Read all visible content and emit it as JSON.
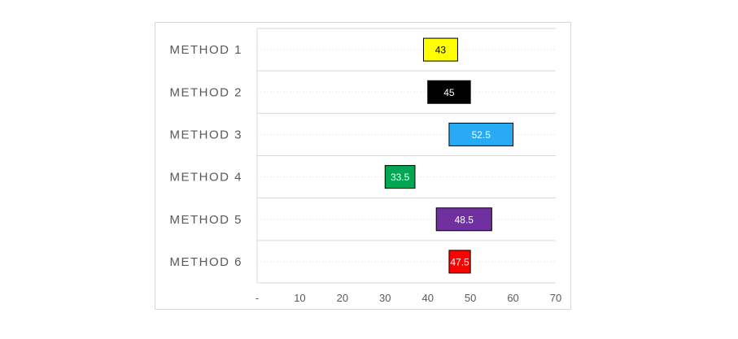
{
  "chart_data": {
    "type": "bar",
    "orientation": "horizontal",
    "subtype": "floating-range",
    "title": "",
    "xlabel": "",
    "ylabel": "",
    "xlim": [
      0,
      70
    ],
    "x_ticks": [
      "-",
      "10",
      "20",
      "30",
      "40",
      "50",
      "60",
      "70"
    ],
    "grid": "horizontal row separators",
    "categories": [
      "METHOD 1",
      "METHOD 2",
      "METHOD 3",
      "METHOD 4",
      "METHOD 5",
      "METHOD 6"
    ],
    "bars": [
      {
        "category": "METHOD 1",
        "start": 39,
        "end": 47,
        "label": "43",
        "color": "#ffff00",
        "text_color": "#000000"
      },
      {
        "category": "METHOD 2",
        "start": 40,
        "end": 50,
        "label": "45",
        "color": "#000000",
        "text_color": "#ffffff"
      },
      {
        "category": "METHOD 3",
        "start": 45,
        "end": 60,
        "label": "52.5",
        "color": "#29aaf4",
        "text_color": "#ffffff"
      },
      {
        "category": "METHOD 4",
        "start": 30,
        "end": 37,
        "label": "33.5",
        "color": "#00a651",
        "text_color": "#ffffff"
      },
      {
        "category": "METHOD 5",
        "start": 42,
        "end": 55,
        "label": "48.5",
        "color": "#7030a0",
        "text_color": "#ffffff"
      },
      {
        "category": "METHOD 6",
        "start": 45,
        "end": 50,
        "label": "47.5",
        "color": "#ff0000",
        "text_color": "#ffffff"
      }
    ]
  }
}
